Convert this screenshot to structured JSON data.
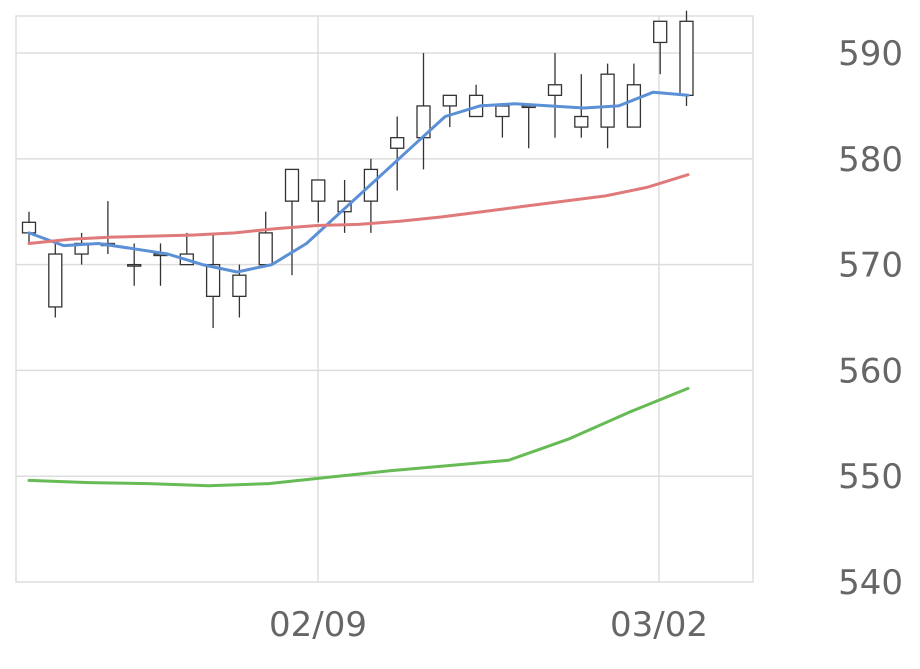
{
  "chart_data": {
    "type": "candlestick",
    "x_tick_labels": [
      "02/09",
      "03/02"
    ],
    "y_ticks": [
      540,
      550,
      560,
      570,
      580,
      590
    ],
    "ylim": [
      540,
      593.5
    ],
    "grid": true,
    "candles": [
      {
        "open": 573,
        "high": 575,
        "low": 572,
        "close": 574
      },
      {
        "open": 566,
        "high": 572,
        "low": 565,
        "close": 571
      },
      {
        "open": 571,
        "high": 573,
        "low": 570,
        "close": 572
      },
      {
        "open": 572,
        "high": 576,
        "low": 571,
        "close": 571.8
      },
      {
        "open": 570,
        "high": 572,
        "low": 568,
        "close": 570
      },
      {
        "open": 571,
        "high": 572,
        "low": 568,
        "close": 571
      },
      {
        "open": 570,
        "high": 573,
        "low": 570,
        "close": 571
      },
      {
        "open": 567,
        "high": 573,
        "low": 564,
        "close": 570
      },
      {
        "open": 567,
        "high": 570,
        "low": 565,
        "close": 569
      },
      {
        "open": 570,
        "high": 575,
        "low": 570,
        "close": 573
      },
      {
        "open": 576,
        "high": 579,
        "low": 569,
        "close": 579
      },
      {
        "open": 576,
        "high": 578,
        "low": 574,
        "close": 578
      },
      {
        "open": 575,
        "high": 578,
        "low": 573,
        "close": 576
      },
      {
        "open": 576,
        "high": 580,
        "low": 573,
        "close": 579
      },
      {
        "open": 581,
        "high": 584,
        "low": 577,
        "close": 582
      },
      {
        "open": 582,
        "high": 590,
        "low": 579,
        "close": 585
      },
      {
        "open": 585,
        "high": 586,
        "low": 583,
        "close": 586
      },
      {
        "open": 584,
        "high": 587,
        "low": 584,
        "close": 586
      },
      {
        "open": 584,
        "high": 585,
        "low": 582,
        "close": 585
      },
      {
        "open": 585,
        "high": 585,
        "low": 581,
        "close": 585
      },
      {
        "open": 586,
        "high": 590,
        "low": 582,
        "close": 587
      },
      {
        "open": 583,
        "high": 588,
        "low": 582,
        "close": 584
      },
      {
        "open": 583,
        "high": 589,
        "low": 581,
        "close": 588
      },
      {
        "open": 583,
        "high": 589,
        "low": 583,
        "close": 587
      },
      {
        "open": 591,
        "high": 593,
        "low": 588,
        "close": 593
      },
      {
        "open": 586,
        "high": 594,
        "low": 585,
        "close": 593
      }
    ],
    "series": [
      {
        "color": "#5b8fd6",
        "values": [
          573,
          571.8,
          572,
          571.5,
          571,
          570,
          569.3,
          570,
          572,
          575,
          578,
          581,
          584,
          585,
          585.2,
          585,
          584.8,
          585,
          586.3,
          586
        ]
      },
      {
        "color": "#e07a7a",
        "values": [
          572,
          572.4,
          572.6,
          572.7,
          572.8,
          573,
          573.4,
          573.7,
          573.8,
          574.1,
          574.5,
          575,
          575.5,
          576,
          576.5,
          577.3,
          578.5
        ]
      },
      {
        "color": "#66bb55",
        "values": [
          549.6,
          549.4,
          549.3,
          549.1,
          549.3,
          549.9,
          550.5,
          551,
          551.5,
          553.5,
          556,
          558.3
        ]
      }
    ],
    "colors": {
      "up_body": "#ffffff",
      "down_body": "#4a4a4a",
      "wick": "#333333",
      "grid": "#dddddd",
      "tick_text": "#666666"
    }
  }
}
